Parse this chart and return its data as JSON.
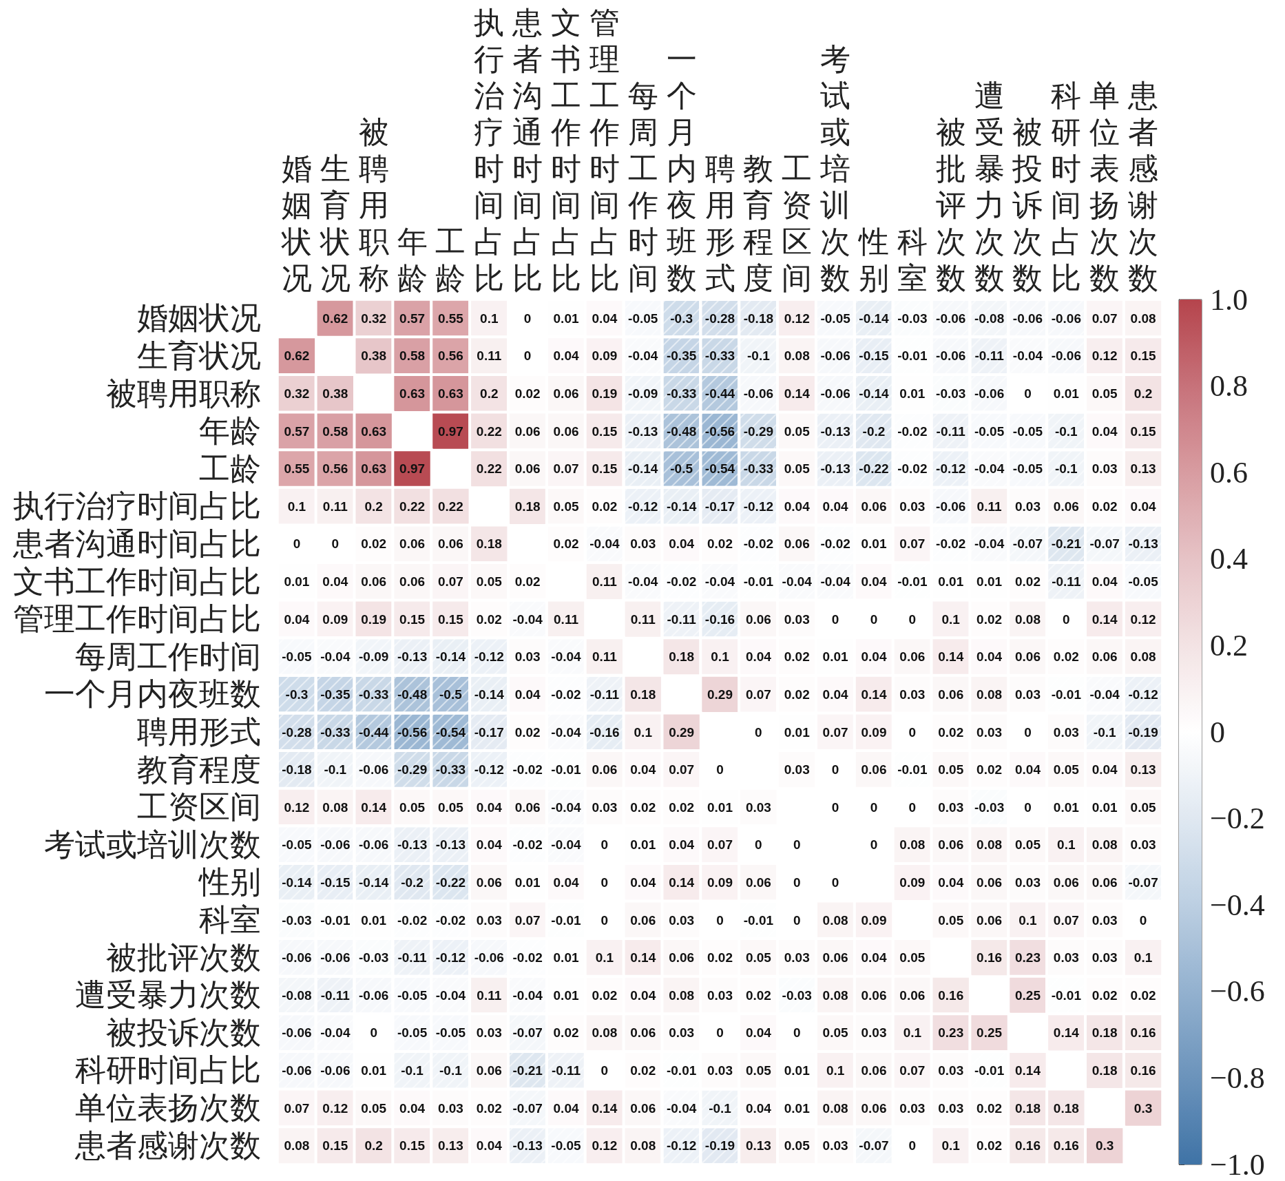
{
  "chart_data": {
    "type": "heatmap",
    "categories": [
      "婚姻状况",
      "生育状况",
      "被聘用职称",
      "年龄",
      "工龄",
      "执行治疗时间占比",
      "患者沟通时间占比",
      "文书工作时间占比",
      "管理工作时间占比",
      "每周工作时间",
      "一个月内夜班数",
      "聘用形式",
      "教育程度",
      "工资区间",
      "考试或培训次数",
      "性别",
      "科室",
      "被批评次数",
      "遭受暴力次数",
      "被投诉次数",
      "科研时间占比",
      "单位表扬次数",
      "患者感谢次数"
    ],
    "y_categories": [
      "婚姻状况",
      "生育状况",
      "被聘用职称",
      "年龄",
      "工龄",
      "执行治疗时间占比",
      "患者沟通时间占比",
      "文书工作时间占比",
      "管理工作时间占比",
      "每周工作时间",
      "一个月内夜班数",
      "聘用形式",
      "教育程度",
      "工资区间",
      "考试或培训次数",
      "性别",
      "科室",
      "被批评次数",
      "遭受暴力次数",
      "被投诉次数",
      "科研时间占比",
      "单位表扬次数",
      "患者感谢次数"
    ],
    "cells": [
      [
        null,
        0.62,
        0.32,
        0.57,
        0.55,
        0.1,
        0,
        0.01,
        0.04,
        -0.05,
        -0.3,
        -0.28,
        -0.18,
        0.12,
        -0.05,
        -0.14,
        -0.03,
        -0.06,
        -0.08,
        -0.06,
        -0.06,
        0.07,
        0.08
      ],
      [
        0.62,
        null,
        0.38,
        0.58,
        0.56,
        0.11,
        0,
        0.04,
        0.09,
        -0.04,
        -0.35,
        -0.33,
        -0.1,
        0.08,
        -0.06,
        -0.15,
        -0.01,
        -0.06,
        -0.11,
        -0.04,
        -0.06,
        0.12,
        0.15
      ],
      [
        0.32,
        0.38,
        null,
        0.63,
        0.63,
        0.2,
        0.02,
        0.06,
        0.19,
        -0.09,
        -0.33,
        -0.44,
        -0.06,
        0.14,
        -0.06,
        -0.14,
        0.01,
        -0.03,
        -0.06,
        0,
        0.01,
        0.05,
        0.2
      ],
      [
        0.57,
        0.58,
        0.63,
        null,
        0.97,
        0.22,
        0.06,
        0.06,
        0.15,
        -0.13,
        -0.48,
        -0.56,
        -0.29,
        0.05,
        -0.13,
        -0.2,
        -0.02,
        -0.11,
        -0.05,
        -0.05,
        -0.1,
        0.04,
        0.15
      ],
      [
        0.55,
        0.56,
        0.63,
        0.97,
        null,
        0.22,
        0.06,
        0.07,
        0.15,
        -0.14,
        -0.5,
        -0.54,
        -0.33,
        0.05,
        -0.13,
        -0.22,
        -0.02,
        -0.12,
        -0.04,
        -0.05,
        -0.1,
        0.03,
        0.13
      ],
      [
        0.1,
        0.11,
        0.2,
        0.22,
        0.22,
        null,
        0.18,
        0.05,
        0.02,
        -0.12,
        -0.14,
        -0.17,
        -0.12,
        0.04,
        0.04,
        0.06,
        0.03,
        -0.06,
        0.11,
        0.03,
        0.06,
        0.02,
        0.04
      ],
      [
        0,
        0,
        0.02,
        0.06,
        0.06,
        0.18,
        null,
        0.02,
        -0.04,
        0.03,
        0.04,
        0.02,
        -0.02,
        0.06,
        -0.02,
        0.01,
        0.07,
        -0.02,
        -0.04,
        -0.07,
        -0.21,
        -0.07,
        -0.13
      ],
      [
        0.01,
        0.04,
        0.06,
        0.06,
        0.07,
        0.05,
        0.02,
        null,
        0.11,
        -0.04,
        -0.02,
        -0.04,
        -0.01,
        -0.04,
        -0.04,
        0.04,
        -0.01,
        0.01,
        0.01,
        0.02,
        -0.11,
        0.04,
        -0.05
      ],
      [
        0.04,
        0.09,
        0.19,
        0.15,
        0.15,
        0.02,
        -0.04,
        0.11,
        null,
        0.11,
        -0.11,
        -0.16,
        0.06,
        0.03,
        0,
        0,
        0,
        0.1,
        0.02,
        0.08,
        0,
        0.14,
        0.12
      ],
      [
        -0.05,
        -0.04,
        -0.09,
        -0.13,
        -0.14,
        -0.12,
        0.03,
        -0.04,
        0.11,
        null,
        0.18,
        0.1,
        0.04,
        0.02,
        0.01,
        0.04,
        0.06,
        0.14,
        0.04,
        0.06,
        0.02,
        0.06,
        0.08
      ],
      [
        -0.3,
        -0.35,
        -0.33,
        -0.48,
        -0.5,
        -0.14,
        0.04,
        -0.02,
        -0.11,
        0.18,
        null,
        0.29,
        0.07,
        0.02,
        0.04,
        0.14,
        0.03,
        0.06,
        0.08,
        0.03,
        -0.01,
        -0.04,
        -0.12
      ],
      [
        -0.28,
        -0.33,
        -0.44,
        -0.56,
        -0.54,
        -0.17,
        0.02,
        -0.04,
        -0.16,
        0.1,
        0.29,
        null,
        0,
        0.01,
        0.07,
        0.09,
        0,
        0.02,
        0.03,
        0,
        0.03,
        -0.1,
        -0.19
      ],
      [
        -0.18,
        -0.1,
        -0.06,
        -0.29,
        -0.33,
        -0.12,
        -0.02,
        -0.01,
        0.06,
        0.04,
        0.07,
        0,
        null,
        0.03,
        0,
        0.06,
        -0.01,
        0.05,
        0.02,
        0.04,
        0.05,
        0.04,
        0.13
      ],
      [
        0.12,
        0.08,
        0.14,
        0.05,
        0.05,
        0.04,
        0.06,
        -0.04,
        0.03,
        0.02,
        0.02,
        0.01,
        0.03,
        null,
        0,
        0,
        0,
        0.03,
        -0.03,
        0,
        0.01,
        0.01,
        0.05
      ],
      [
        -0.05,
        -0.06,
        -0.06,
        -0.13,
        -0.13,
        0.04,
        -0.02,
        -0.04,
        0,
        0.01,
        0.04,
        0.07,
        0,
        0,
        null,
        0,
        0.08,
        0.06,
        0.08,
        0.05,
        0.1,
        0.08,
        0.03
      ],
      [
        -0.14,
        -0.15,
        -0.14,
        -0.2,
        -0.22,
        0.06,
        0.01,
        0.04,
        0,
        0.04,
        0.14,
        0.09,
        0.06,
        0,
        0,
        null,
        0.09,
        0.04,
        0.06,
        0.03,
        0.06,
        0.06,
        -0.07
      ],
      [
        -0.03,
        -0.01,
        0.01,
        -0.02,
        -0.02,
        0.03,
        0.07,
        -0.01,
        0,
        0.06,
        0.03,
        0,
        -0.01,
        0,
        0.08,
        0.09,
        null,
        0.05,
        0.06,
        0.1,
        0.07,
        0.03,
        0
      ],
      [
        -0.06,
        -0.06,
        -0.03,
        -0.11,
        -0.12,
        -0.06,
        -0.02,
        0.01,
        0.1,
        0.14,
        0.06,
        0.02,
        0.05,
        0.03,
        0.06,
        0.04,
        0.05,
        null,
        0.16,
        0.23,
        0.03,
        0.03,
        0.1
      ],
      [
        -0.08,
        -0.11,
        -0.06,
        -0.05,
        -0.04,
        0.11,
        -0.04,
        0.01,
        0.02,
        0.04,
        0.08,
        0.03,
        0.02,
        -0.03,
        0.08,
        0.06,
        0.06,
        0.16,
        null,
        0.25,
        -0.01,
        0.02,
        0.02
      ],
      [
        -0.06,
        -0.04,
        0,
        -0.05,
        -0.05,
        0.03,
        -0.07,
        0.02,
        0.08,
        0.06,
        0.03,
        0,
        0.04,
        0,
        0.05,
        0.03,
        0.1,
        0.23,
        0.25,
        null,
        0.14,
        0.18,
        0.16
      ],
      [
        -0.06,
        -0.06,
        0.01,
        -0.1,
        -0.1,
        0.06,
        -0.21,
        -0.11,
        0,
        0.02,
        -0.01,
        0.03,
        0.05,
        0.01,
        0.1,
        0.06,
        0.07,
        0.03,
        -0.01,
        0.14,
        null,
        0.18,
        0.16
      ],
      [
        0.07,
        0.12,
        0.05,
        0.04,
        0.03,
        0.02,
        -0.07,
        0.04,
        0.14,
        0.06,
        -0.04,
        -0.1,
        0.04,
        0.01,
        0.08,
        0.06,
        0.03,
        0.03,
        0.02,
        0.18,
        0.18,
        null,
        0.3
      ],
      [
        0.08,
        0.15,
        0.2,
        0.15,
        0.13,
        0.04,
        -0.13,
        -0.05,
        0.12,
        0.08,
        -0.12,
        -0.19,
        0.13,
        0.05,
        0.03,
        -0.07,
        0,
        0.1,
        0.02,
        0.16,
        0.16,
        0.3,
        null
      ]
    ],
    "data_labels": true,
    "clim": [
      -1,
      1
    ],
    "cticks": [
      {
        "value": -1,
        "label": "−1.0"
      },
      {
        "value": -0.8,
        "label": "−0.8"
      },
      {
        "value": -0.6,
        "label": "−0.6"
      },
      {
        "value": -0.4,
        "label": "−0.4"
      },
      {
        "value": -0.2,
        "label": "−0.2"
      },
      0,
      0.2,
      0.4,
      0.6,
      0.8,
      {
        "value": 1,
        "label": "1.0"
      }
    ]
  }
}
